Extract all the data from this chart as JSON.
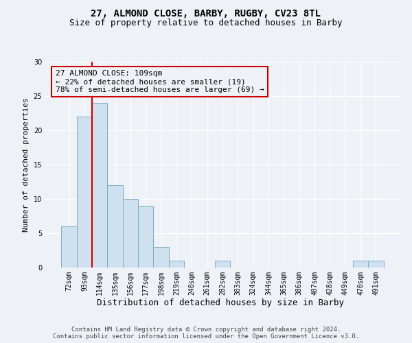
{
  "title": "27, ALMOND CLOSE, BARBY, RUGBY, CV23 8TL",
  "subtitle": "Size of property relative to detached houses in Barby",
  "xlabel": "Distribution of detached houses by size in Barby",
  "ylabel": "Number of detached properties",
  "footer_line1": "Contains HM Land Registry data © Crown copyright and database right 2024.",
  "footer_line2": "Contains public sector information licensed under the Open Government Licence v3.0.",
  "bar_labels": [
    "72sqm",
    "93sqm",
    "114sqm",
    "135sqm",
    "156sqm",
    "177sqm",
    "198sqm",
    "219sqm",
    "240sqm",
    "261sqm",
    "282sqm",
    "303sqm",
    "324sqm",
    "344sqm",
    "365sqm",
    "386sqm",
    "407sqm",
    "428sqm",
    "449sqm",
    "470sqm",
    "491sqm"
  ],
  "bar_values": [
    6,
    22,
    24,
    12,
    10,
    9,
    3,
    1,
    0,
    0,
    1,
    0,
    0,
    0,
    0,
    0,
    0,
    0,
    0,
    1,
    1
  ],
  "bar_color": "#cfe0ef",
  "bar_edge_color": "#7aafc8",
  "vline_color": "#cc0000",
  "ylim": [
    0,
    30
  ],
  "yticks": [
    0,
    5,
    10,
    15,
    20,
    25,
    30
  ],
  "annotation_text": "27 ALMOND CLOSE: 109sqm\n← 22% of detached houses are smaller (19)\n78% of semi-detached houses are larger (69) →",
  "annotation_box_color": "#cc0000",
  "background_color": "#eef2f7",
  "grid_color": "#ffffff",
  "title_fontsize": 10,
  "subtitle_fontsize": 9,
  "ylabel_fontsize": 8,
  "xlabel_fontsize": 9,
  "tick_fontsize": 7,
  "annotation_fontsize": 8,
  "footer_fontsize": 6.5
}
